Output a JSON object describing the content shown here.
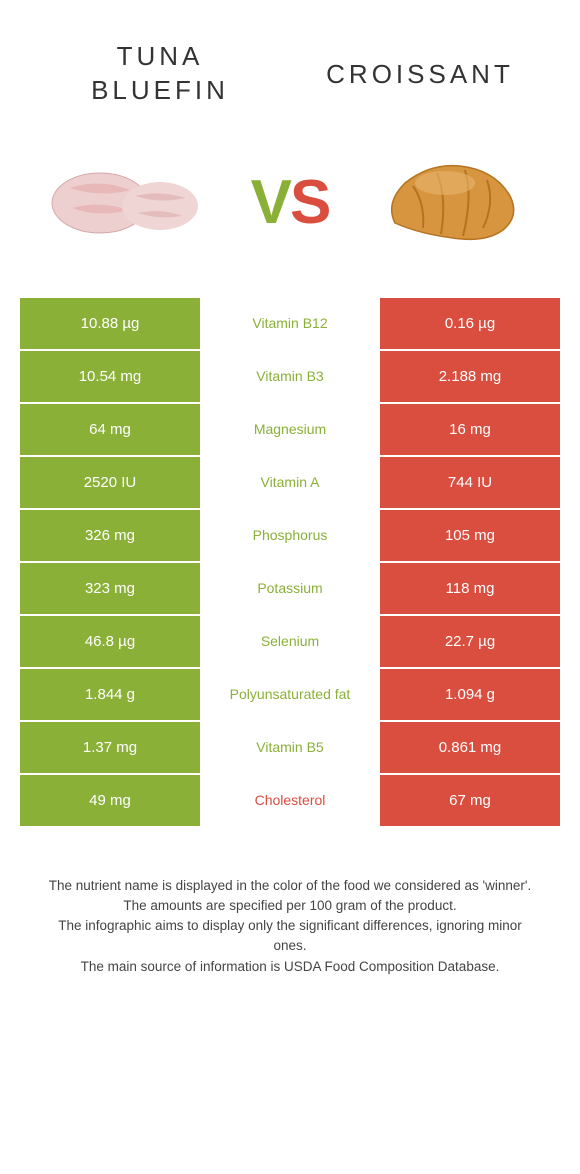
{
  "colors": {
    "left_win": "#8bb038",
    "right_win": "#d94e3f",
    "left_lose": "#a6c25e",
    "right_lose": "#e07c6f",
    "vs_v": "#8bb038",
    "vs_s": "#d94e3f",
    "title_left": "#333333",
    "title_right": "#333333",
    "footer": "#444444"
  },
  "food_left": {
    "title": "Tuna\nBluefin"
  },
  "food_right": {
    "title": "Croissant"
  },
  "vs": {
    "v": "V",
    "s": "S"
  },
  "rows": [
    {
      "left": "10.88 µg",
      "nutrient": "Vitamin B12",
      "right": "0.16 µg",
      "winner": "left"
    },
    {
      "left": "10.54 mg",
      "nutrient": "Vitamin B3",
      "right": "2.188 mg",
      "winner": "left"
    },
    {
      "left": "64 mg",
      "nutrient": "Magnesium",
      "right": "16 mg",
      "winner": "left"
    },
    {
      "left": "2520 IU",
      "nutrient": "Vitamin A",
      "right": "744 IU",
      "winner": "left"
    },
    {
      "left": "326 mg",
      "nutrient": "Phosphorus",
      "right": "105 mg",
      "winner": "left"
    },
    {
      "left": "323 mg",
      "nutrient": "Potassium",
      "right": "118 mg",
      "winner": "left"
    },
    {
      "left": "46.8 µg",
      "nutrient": "Selenium",
      "right": "22.7 µg",
      "winner": "left"
    },
    {
      "left": "1.844 g",
      "nutrient": "Polyunsaturated fat",
      "right": "1.094 g",
      "winner": "left"
    },
    {
      "left": "1.37 mg",
      "nutrient": "Vitamin B5",
      "right": "0.861 mg",
      "winner": "left"
    },
    {
      "left": "49 mg",
      "nutrient": "Cholesterol",
      "right": "67 mg",
      "winner": "right"
    }
  ],
  "footer": {
    "line1": "The nutrient name is displayed in the color of the food we considered as 'winner'.",
    "line2": "The amounts are specified per 100 gram of the product.",
    "line3": "The infographic aims to display only the significant differences, ignoring minor ones.",
    "line4": "The main source of information is USDA Food Composition Database."
  }
}
